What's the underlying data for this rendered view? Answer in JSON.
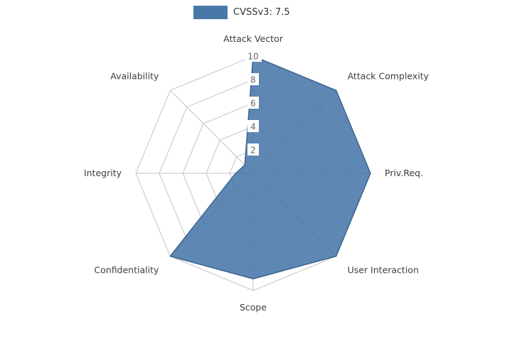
{
  "legend": {
    "label": "CVSSv3: 7.5",
    "swatch_color": "#4878a8"
  },
  "chart_data": {
    "type": "radar",
    "title": "",
    "categories": [
      "Attack Vector",
      "Attack Complexity",
      "Priv.Req.",
      "User Interaction",
      "Scope",
      "Confidentiality",
      "Integrity",
      "Availability"
    ],
    "series": [
      {
        "name": "CVSSv3: 7.5",
        "values": [
          10,
          10,
          10,
          10,
          9,
          10,
          1.5,
          1
        ]
      }
    ],
    "radial_ticks": [
      2,
      4,
      6,
      8,
      10
    ],
    "r_min": 0,
    "r_max": 10,
    "grid": true,
    "legend_position": "top-center",
    "fill_color": "#4878a8",
    "stroke_color": "#3a648f",
    "grid_color": "#c4c4c4",
    "tick_color": "#666666",
    "label_color": "#3d3d3d"
  }
}
